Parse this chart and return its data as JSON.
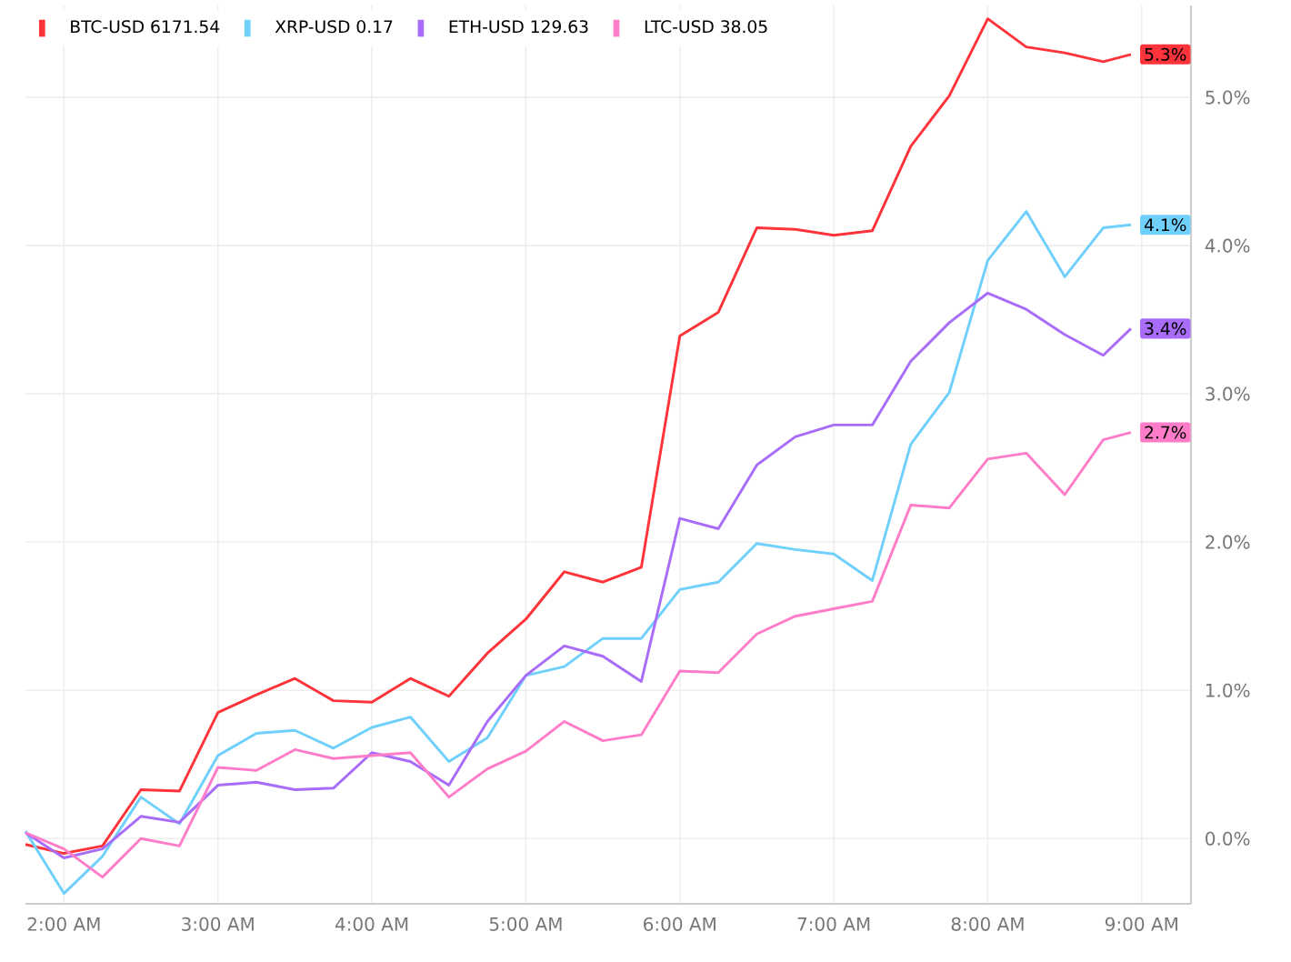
{
  "chart_data": {
    "type": "line",
    "x": [
      1.75,
      2.0,
      2.25,
      2.5,
      2.75,
      3.0,
      3.25,
      3.5,
      3.75,
      4.0,
      4.25,
      4.5,
      4.75,
      5.0,
      5.25,
      5.5,
      5.75,
      6.0,
      6.25,
      6.5,
      6.75,
      7.0,
      7.25,
      7.5,
      7.75,
      8.0,
      8.25,
      8.5,
      8.75,
      8.93
    ],
    "series": [
      {
        "name": "BTC-USD 6171.54",
        "color": "#ff333a",
        "values": [
          -0.04,
          -0.1,
          -0.05,
          0.33,
          0.32,
          0.85,
          0.97,
          1.08,
          0.93,
          0.92,
          1.08,
          0.96,
          1.25,
          1.48,
          1.8,
          1.73,
          1.83,
          3.39,
          3.55,
          4.12,
          4.11,
          4.07,
          4.1,
          4.67,
          5.01,
          5.53,
          5.34,
          5.3,
          5.24,
          5.29
        ],
        "value_labels": [
          null,
          null,
          null,
          null,
          null,
          null,
          null,
          null,
          null,
          null,
          null,
          null,
          null,
          null,
          null,
          null,
          null,
          null,
          null,
          null,
          null,
          null,
          null,
          null,
          null,
          null,
          null,
          null,
          null,
          "5.3%"
        ]
      },
      {
        "name": "XRP-USD 0.17",
        "color": "#6fd0fb",
        "values": [
          0.05,
          -0.37,
          -0.12,
          0.28,
          0.1,
          0.56,
          0.71,
          0.73,
          0.61,
          0.75,
          0.82,
          0.52,
          0.68,
          1.1,
          1.16,
          1.35,
          1.35,
          1.68,
          1.73,
          1.99,
          1.95,
          1.92,
          1.74,
          2.66,
          3.01,
          3.9,
          4.23,
          3.79,
          4.12,
          4.14
        ],
        "value_labels": [
          null,
          null,
          null,
          null,
          null,
          null,
          null,
          null,
          null,
          null,
          null,
          null,
          null,
          null,
          null,
          null,
          null,
          null,
          null,
          null,
          null,
          null,
          null,
          null,
          null,
          null,
          null,
          null,
          null,
          "4.1%"
        ]
      },
      {
        "name": "ETH-USD 129.63",
        "color": "#a96cf9",
        "values": [
          0.04,
          -0.13,
          -0.07,
          0.15,
          0.11,
          0.36,
          0.38,
          0.33,
          0.34,
          0.58,
          0.52,
          0.36,
          0.79,
          1.1,
          1.3,
          1.23,
          1.06,
          2.16,
          2.09,
          2.52,
          2.71,
          2.79,
          2.79,
          3.22,
          3.48,
          3.68,
          3.57,
          3.4,
          3.26,
          3.44
        ],
        "value_labels": [
          null,
          null,
          null,
          null,
          null,
          null,
          null,
          null,
          null,
          null,
          null,
          null,
          null,
          null,
          null,
          null,
          null,
          null,
          null,
          null,
          null,
          null,
          null,
          null,
          null,
          null,
          null,
          null,
          null,
          "3.4%"
        ]
      },
      {
        "name": "LTC-USD 38.05",
        "color": "#ff7dc8",
        "values": [
          0.04,
          -0.07,
          -0.26,
          0.0,
          -0.05,
          0.48,
          0.46,
          0.6,
          0.54,
          0.56,
          0.58,
          0.28,
          0.47,
          0.59,
          0.79,
          0.66,
          0.7,
          1.13,
          1.12,
          1.38,
          1.5,
          1.55,
          1.6,
          2.25,
          2.23,
          2.56,
          2.6,
          2.32,
          2.69,
          2.74
        ],
        "value_labels": [
          null,
          null,
          null,
          null,
          null,
          null,
          null,
          null,
          null,
          null,
          null,
          null,
          null,
          null,
          null,
          null,
          null,
          null,
          null,
          null,
          null,
          null,
          null,
          null,
          null,
          null,
          null,
          null,
          null,
          "2.7%"
        ]
      }
    ],
    "xlim": [
      1.75,
      9.32
    ],
    "ylim": [
      -0.44,
      5.62
    ],
    "xticks": [
      {
        "value": 2,
        "label": "2:00 AM"
      },
      {
        "value": 3,
        "label": "3:00 AM"
      },
      {
        "value": 4,
        "label": "4:00 AM"
      },
      {
        "value": 5,
        "label": "5:00 AM"
      },
      {
        "value": 6,
        "label": "6:00 AM"
      },
      {
        "value": 7,
        "label": "7:00 AM"
      },
      {
        "value": 8,
        "label": "8:00 AM"
      },
      {
        "value": 9,
        "label": "9:00 AM"
      }
    ],
    "yticks": [
      {
        "value": 0,
        "label": "0.0%"
      },
      {
        "value": 1,
        "label": "1.0%"
      },
      {
        "value": 2,
        "label": "2.0%"
      },
      {
        "value": 3,
        "label": "3.0%"
      },
      {
        "value": 4,
        "label": "4.0%"
      },
      {
        "value": 5,
        "label": "5.0%"
      }
    ],
    "grid": true,
    "legend": "top left",
    "line_style": "solid"
  }
}
